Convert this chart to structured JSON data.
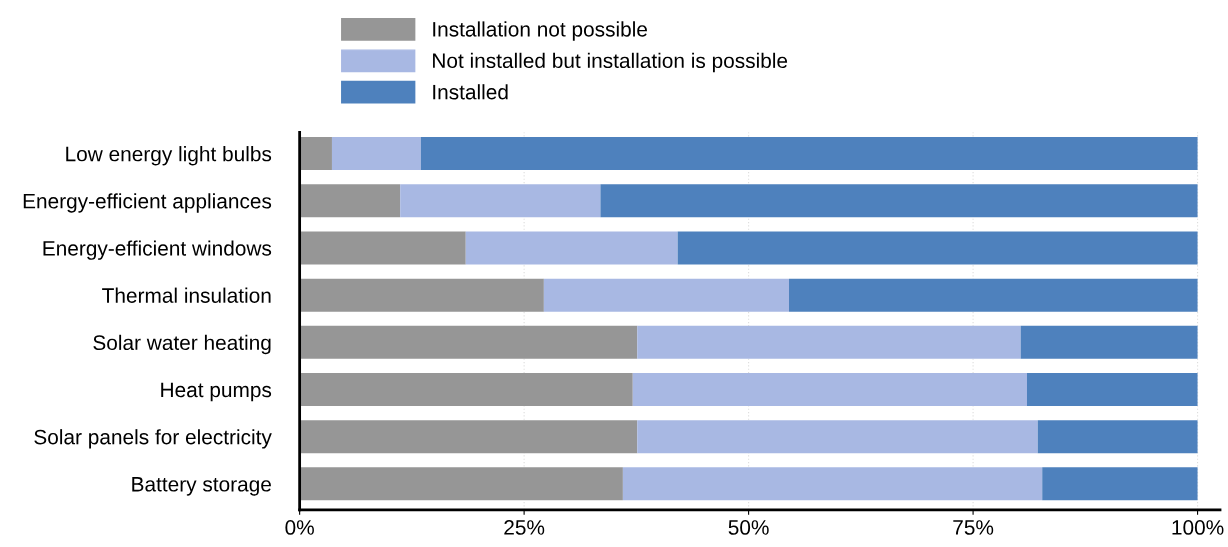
{
  "chart_data": {
    "type": "bar",
    "orientation": "horizontal",
    "stacked": true,
    "categories": [
      "Low energy light bulbs",
      "Energy-efficient appliances",
      "Energy-efficient windows",
      "Thermal insulation",
      "Solar water heating",
      "Heat pumps",
      "Solar panels for electricity",
      "Battery storage"
    ],
    "series": [
      {
        "name": "Installation not possible",
        "color": "#969696",
        "values": [
          3.6,
          11.2,
          18.5,
          27.2,
          37.6,
          37.1,
          37.6,
          36.0
        ]
      },
      {
        "name": "Not installed but installation is possible",
        "color": "#a8b8e3",
        "values": [
          9.9,
          22.3,
          23.6,
          27.3,
          42.7,
          43.9,
          44.6,
          46.7
        ]
      },
      {
        "name": "Installed",
        "color": "#4e81bd",
        "values": [
          86.5,
          66.5,
          57.9,
          45.5,
          19.7,
          19.0,
          17.8,
          17.3
        ]
      }
    ],
    "xlim": [
      0,
      102.5
    ],
    "xticks": [
      {
        "value": 0,
        "label": "0%"
      },
      {
        "value": 25,
        "label": "25%"
      },
      {
        "value": 50,
        "label": "50%"
      },
      {
        "value": 75,
        "label": "75%"
      },
      {
        "value": 100,
        "label": "100%"
      }
    ],
    "grid": "x",
    "legend": "top"
  }
}
